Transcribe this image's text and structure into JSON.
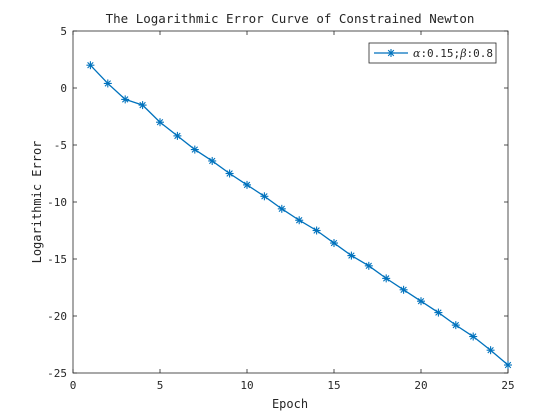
{
  "chart_data": {
    "type": "line",
    "title": "The Logarithmic Error Curve of Constrained Newton",
    "xlabel": "Epoch",
    "ylabel": "Logarithmic Error",
    "xlim": [
      0,
      25
    ],
    "ylim": [
      -25,
      5
    ],
    "xticks": [
      0,
      5,
      10,
      15,
      20,
      25
    ],
    "yticks": [
      5,
      0,
      -5,
      -10,
      -15,
      -20,
      -25
    ],
    "xtick_labels": [
      "0",
      "5",
      "10",
      "15",
      "20",
      "25"
    ],
    "ytick_labels": [
      "5",
      "0",
      "-5",
      "-10",
      "-15",
      "-20",
      "-25"
    ],
    "grid": false,
    "legend_position": "top-right",
    "series": [
      {
        "name": "α:0.15;β:0.8",
        "legend_parts": {
          "alpha": "α",
          "alpha_val": ":0.15;",
          "beta": "β",
          "beta_val": ":0.8"
        },
        "color": "#0072bd",
        "marker": "asterisk",
        "x": [
          1,
          2,
          3,
          4,
          5,
          6,
          7,
          8,
          9,
          10,
          11,
          12,
          13,
          14,
          15,
          16,
          17,
          18,
          19,
          20,
          21,
          22,
          23,
          24,
          25
        ],
        "y": [
          2.0,
          0.4,
          -1.0,
          -1.5,
          -3.0,
          -4.2,
          -5.4,
          -6.4,
          -7.5,
          -8.5,
          -9.5,
          -10.6,
          -11.6,
          -12.5,
          -13.6,
          -14.7,
          -15.6,
          -16.7,
          -17.7,
          -18.7,
          -19.7,
          -20.8,
          -21.8,
          -23.0,
          -24.3
        ]
      }
    ]
  }
}
